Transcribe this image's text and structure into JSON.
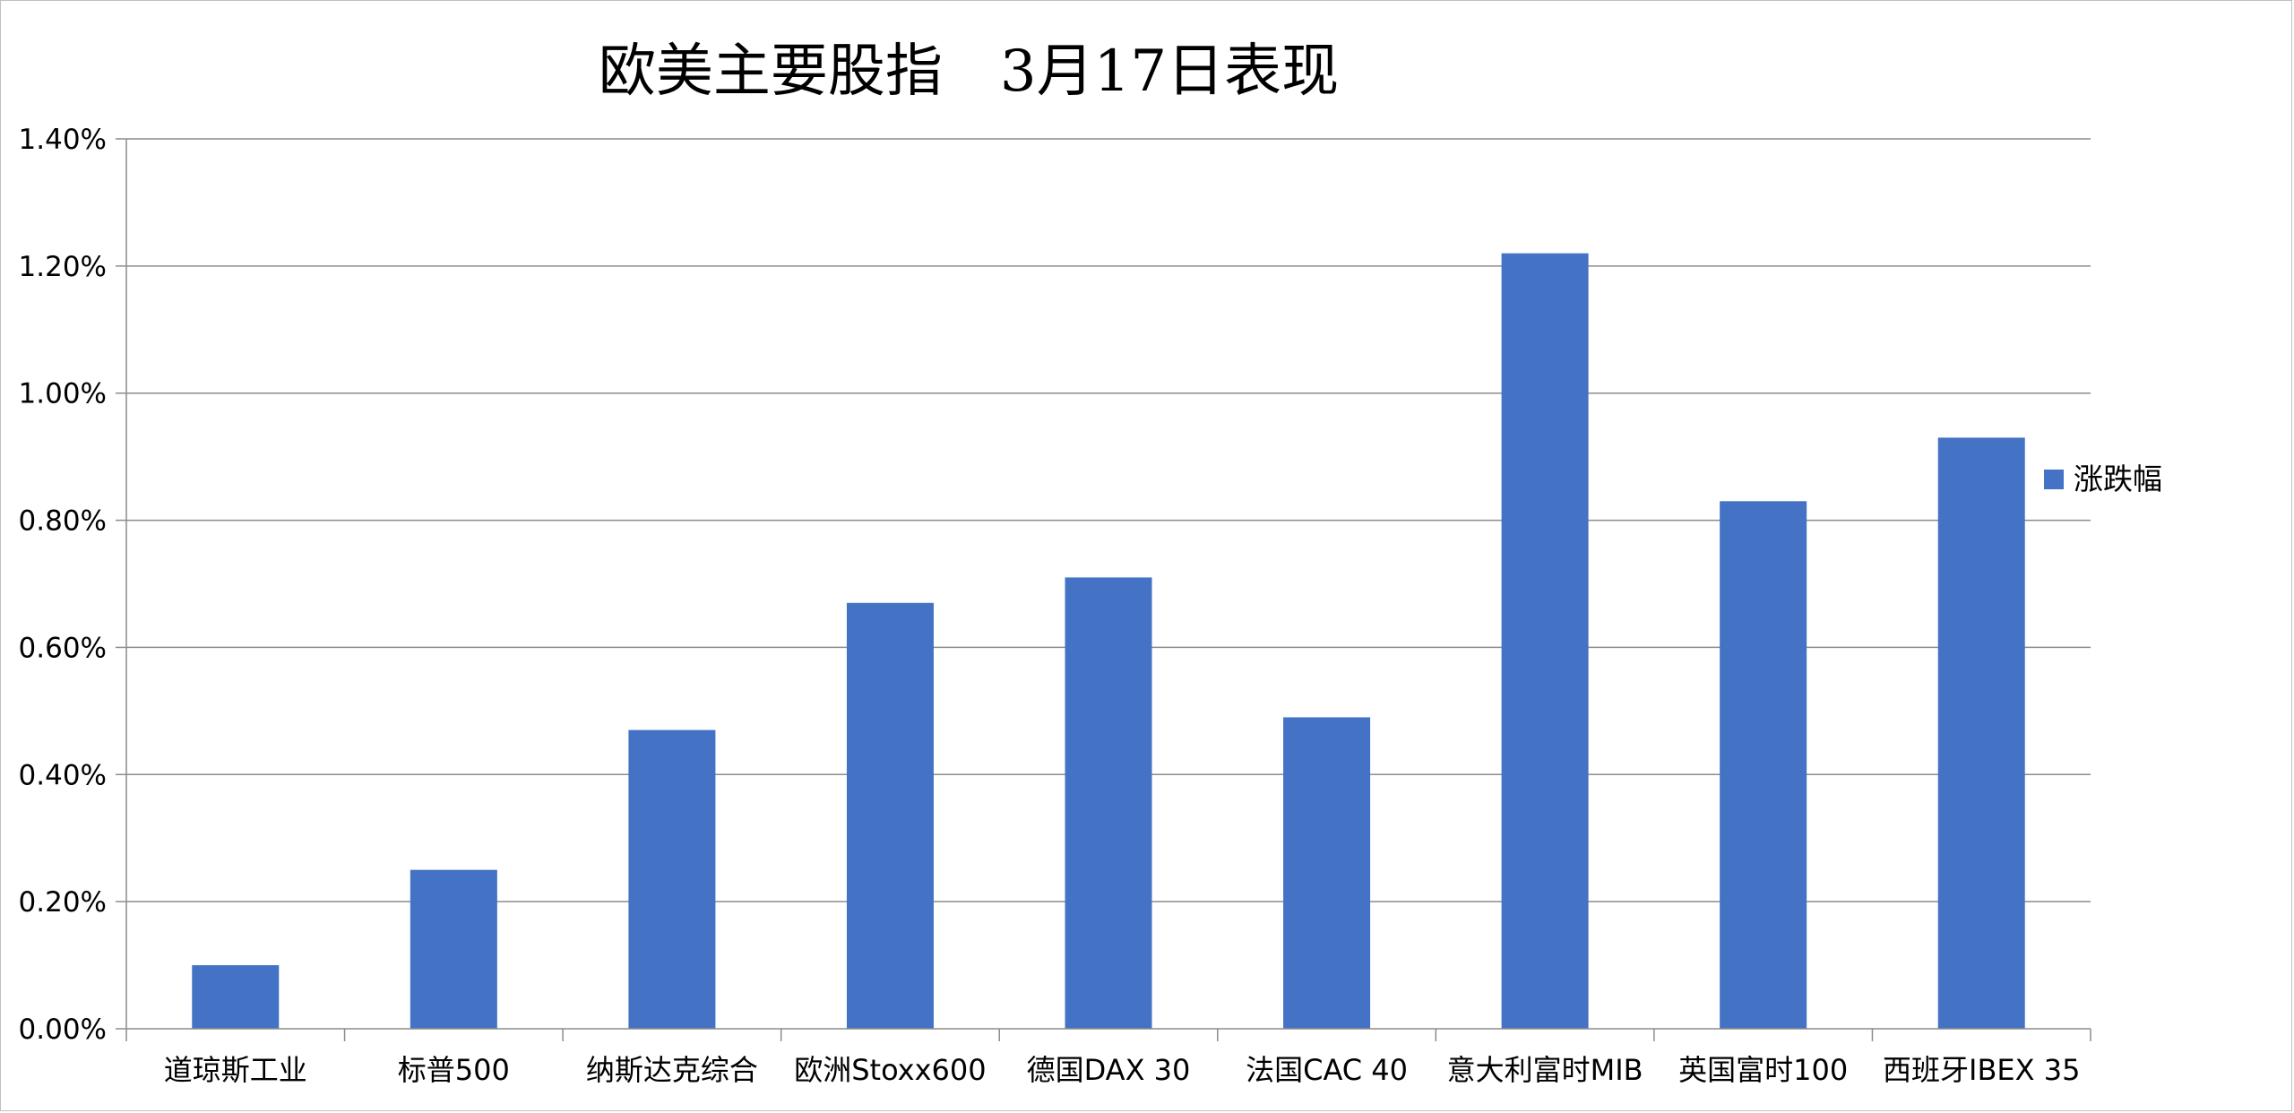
{
  "chart_data": {
    "type": "bar",
    "title": "欧美主要股指　3月17日表现",
    "categories": [
      "道琼斯工业",
      "标普500",
      "纳斯达克综合",
      "欧洲Stoxx600",
      "德国DAX 30",
      "法国CAC 40",
      "意大利富时MIB",
      "英国富时100",
      "西班牙IBEX 35"
    ],
    "series": [
      {
        "name": "涨跌幅",
        "values": [
          0.1,
          0.25,
          0.47,
          0.67,
          0.71,
          0.49,
          1.22,
          0.83,
          0.93
        ],
        "color": "#4472c4"
      }
    ],
    "unit": "%",
    "ylim": [
      0,
      1.4
    ],
    "yticks": [
      "0.00%",
      "0.20%",
      "0.40%",
      "0.60%",
      "0.80%",
      "1.00%",
      "1.20%",
      "1.40%"
    ],
    "ytick_values": [
      0,
      0.2,
      0.4,
      0.6,
      0.8,
      1.0,
      1.2,
      1.4
    ],
    "grid": true,
    "legend_position": "right"
  }
}
